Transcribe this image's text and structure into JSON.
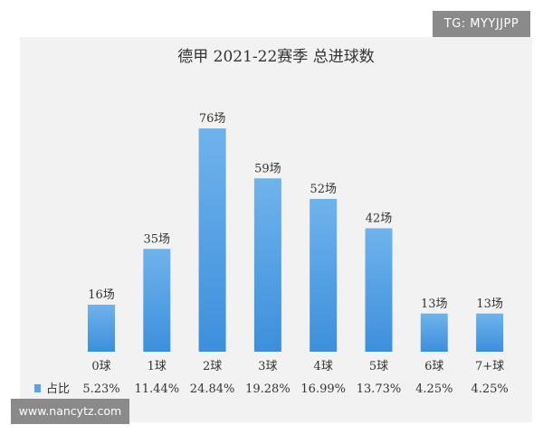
{
  "watermark_top": "TG: MYYJJPP",
  "watermark_bottom": "www.nancytz.com",
  "chart_data": {
    "type": "bar",
    "title": "德甲 2021-22赛季 总进球数",
    "xlabel": "",
    "ylabel": "",
    "categories": [
      "0球",
      "1球",
      "2球",
      "3球",
      "4球",
      "5球",
      "6球",
      "7+球"
    ],
    "values": [
      16,
      35,
      76,
      59,
      52,
      42,
      13,
      13
    ],
    "value_labels": [
      "16场",
      "35场",
      "76场",
      "59场",
      "52场",
      "42场",
      "13场",
      "13场"
    ],
    "legend": {
      "label": "占比",
      "placement": "bottom-left"
    },
    "percentages": [
      "5.23%",
      "11.44%",
      "24.84%",
      "19.28%",
      "16.99%",
      "13.73%",
      "4.25%",
      "4.25%"
    ],
    "ylim": [
      0,
      80
    ],
    "grid": false,
    "colors": {
      "bar_top": "#6fb3ec",
      "bar_bottom": "#3d8fdc",
      "panel_bg": "#f2f2f2",
      "text": "#333333"
    }
  }
}
